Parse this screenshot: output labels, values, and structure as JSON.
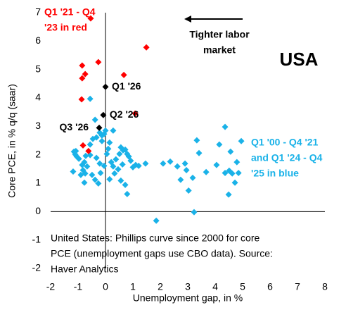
{
  "chart_data": {
    "type": "scatter",
    "x_label": "Unemployment gap, in %",
    "y_label": "Core PCE, in % q/q (saar)",
    "xlim": [
      -2,
      8
    ],
    "xticks": [
      -2,
      -1,
      0,
      1,
      2,
      3,
      4,
      5,
      6,
      7,
      8
    ],
    "ylim": [
      -2,
      7
    ],
    "yticks": [
      -2,
      -1,
      0,
      1,
      2,
      3,
      4,
      5,
      6,
      7
    ],
    "annotations": {
      "red_note": [
        "Q1 '21 - Q4",
        "'23 in red"
      ],
      "labor": [
        "Tighter labor",
        "market"
      ],
      "country": "USA",
      "blue_note": [
        "Q1 '00 - Q4 '21",
        "and Q1 '24 - Q4",
        "'25 in blue"
      ],
      "source": [
        "United States: Phillips curve since 2000 for core",
        "PCE (unemployment gaps use CBO data). Source:",
        "Haver Analytics"
      ]
    },
    "series": [
      {
        "color": "#1ab2e8",
        "x": [
          -1.15,
          -1.1,
          -1.08,
          -1.18,
          -1.05,
          -0.97,
          -0.85,
          -0.82,
          -0.74,
          -0.67,
          -0.9,
          -0.77,
          -0.72,
          -0.56,
          -0.56,
          -0.46,
          -0.38,
          -0.56,
          -0.33,
          -0.21,
          -0.13,
          -0.05,
          0.0,
          -0.13,
          0.05,
          0.1,
          0.21,
          0.28,
          0.38,
          0.51,
          0.56,
          0.64,
          0.72,
          0.79,
          0.85,
          0.92,
          1.0,
          1.1,
          1.21,
          1.46,
          0.33,
          0.46,
          -0.26,
          -0.18,
          -0.21,
          -0.38,
          -0.49,
          0.15,
          0.56,
          0.72,
          0.79,
          1.85,
          2.1,
          2.36,
          2.62,
          2.9,
          2.95,
          2.74,
          3.18,
          3.33,
          3.41,
          3.67,
          3.03,
          4.05,
          4.15,
          4.36,
          4.56,
          4.79,
          4.95,
          4.51,
          4.62,
          4.36,
          4.72,
          4.49,
          4.85,
          3.23,
          0.62,
          0.28,
          0.15,
          -0.77,
          -0.33,
          -0.05
        ],
        "values": [
          2.11,
          2.01,
          2.13,
          1.41,
          1.94,
          1.86,
          1.64,
          1.46,
          1.34,
          1.59,
          1.29,
          1.74,
          1.96,
          1.99,
          2.36,
          2.56,
          3.23,
          3.97,
          2.61,
          2.78,
          2.68,
          2.73,
          2.85,
          2.48,
          2.03,
          2.21,
          1.74,
          1.59,
          1.84,
          2.03,
          2.26,
          2.16,
          2.18,
          2.03,
          1.94,
          1.79,
          1.56,
          1.64,
          1.61,
          1.69,
          1.34,
          1.49,
          0.99,
          1.36,
          1.69,
          1.12,
          1.29,
          1.14,
          1.09,
          0.94,
          0.62,
          -0.32,
          1.69,
          1.76,
          1.59,
          1.69,
          1.46,
          1.12,
          1.19,
          2.51,
          2.06,
          1.39,
          0.74,
          1.64,
          2.36,
          2.98,
          2.11,
          1.74,
          2.48,
          1.44,
          1.34,
          1.36,
          1.02,
          0.6,
          1.36,
          -0.02,
          1.66,
          2.85,
          2.43,
          1.02,
          1.89,
          1.61
        ]
      },
      {
        "color": "#ff0000",
        "x": [
          -0.54,
          1.49,
          -0.26,
          -0.85,
          -0.74,
          -0.85,
          0.67,
          -0.87,
          1.08,
          -0.82,
          -0.62
        ],
        "values": [
          6.8,
          5.78,
          5.26,
          5.14,
          4.84,
          4.69,
          4.81,
          3.95,
          3.45,
          2.33,
          2.13
        ]
      },
      {
        "color": "#000000",
        "x": [
          0.0,
          -0.08,
          -0.23
        ],
        "values": [
          4.39,
          3.4,
          2.95
        ],
        "labels": [
          "Q1 '26",
          "Q2 '26",
          "Q3 '26"
        ]
      }
    ]
  }
}
